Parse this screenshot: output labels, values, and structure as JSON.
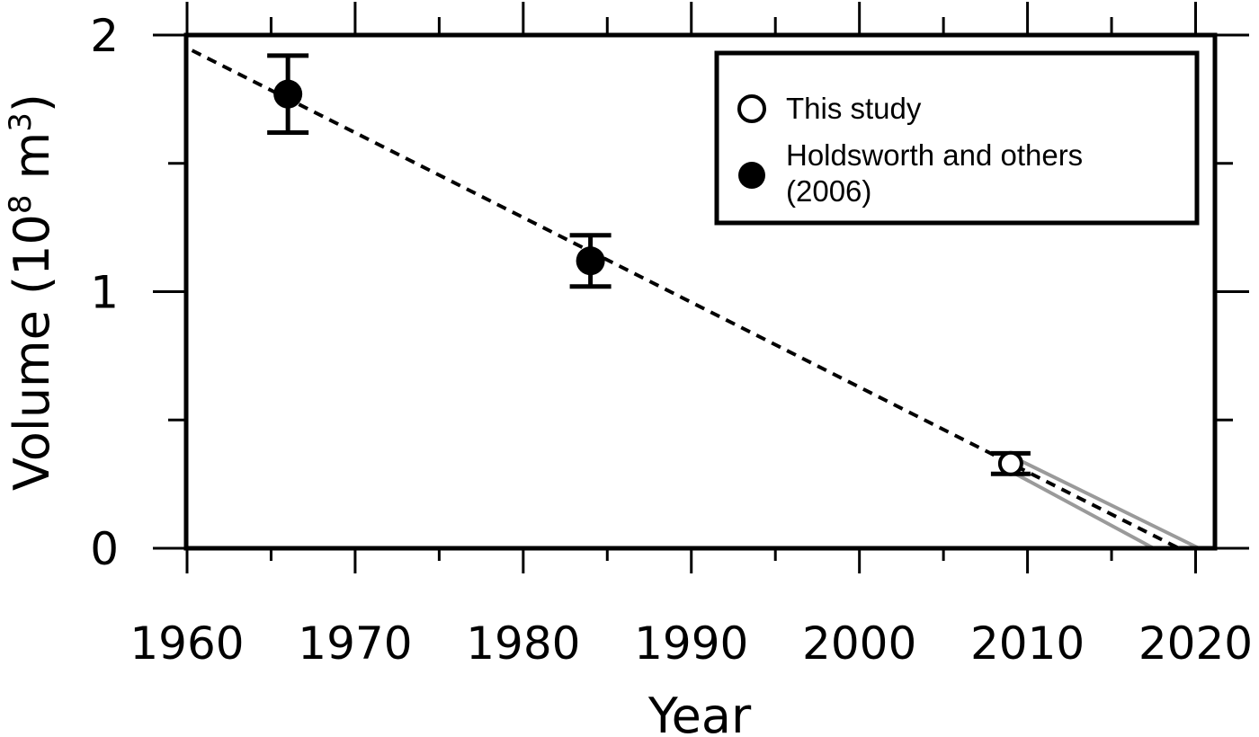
{
  "chart_data": {
    "type": "scatter",
    "xlabel": "Year",
    "ylabel": {
      "prefix": "Volume  (10",
      "exp1": "8",
      "mid": " m",
      "exp2": "3",
      "suffix": ")"
    },
    "xlim": [
      1960,
      2021
    ],
    "ylim": [
      0,
      2
    ],
    "x_ticks_major": [
      1960,
      1970,
      1980,
      1990,
      2000,
      2010,
      2020
    ],
    "x_tick_labels": [
      "1960",
      "1970",
      "1980",
      "1990",
      "2000",
      "2010",
      "2020"
    ],
    "x_ticks_minor": [
      1965,
      1975,
      1985,
      1995,
      2005,
      2015
    ],
    "y_ticks_major": [
      0,
      1,
      2
    ],
    "y_tick_labels": [
      "0",
      "1",
      "2"
    ],
    "y_ticks_minor": [
      0.5,
      1.5
    ],
    "grid": false,
    "legend_position": "top-right",
    "series": [
      {
        "name": "This study",
        "marker": "open-circle",
        "points": [
          {
            "x": 2009,
            "y": 0.33,
            "y_err_low": 0.29,
            "y_err_high": 0.37
          }
        ]
      },
      {
        "name": "Holdsworth and others (2006)",
        "legend_lines": [
          "Holdsworth and others",
          "(2006)"
        ],
        "marker": "filled-circle",
        "points": [
          {
            "x": 1966,
            "y": 1.77,
            "y_err_low": 1.62,
            "y_err_high": 1.92
          },
          {
            "x": 1984,
            "y": 1.12,
            "y_err_low": 1.02,
            "y_err_high": 1.22
          }
        ]
      }
    ],
    "trend_line": {
      "style": "dashed",
      "color": "#000000",
      "start": {
        "x": 1960.3,
        "y": 1.94
      },
      "end": {
        "x": 2019,
        "y": 0.0
      }
    },
    "uncertainty_band": {
      "color": "#9a9a9a",
      "lower": {
        "start": {
          "x": 2009,
          "y": 0.3
        },
        "end": {
          "x": 2017.5,
          "y": 0.0
        }
      },
      "upper": {
        "start": {
          "x": 2009,
          "y": 0.36
        },
        "end": {
          "x": 2020.2,
          "y": 0.0
        }
      }
    },
    "colors": {
      "axis": "#000000",
      "marker": "#000000",
      "band": "#9a9a9a"
    }
  }
}
